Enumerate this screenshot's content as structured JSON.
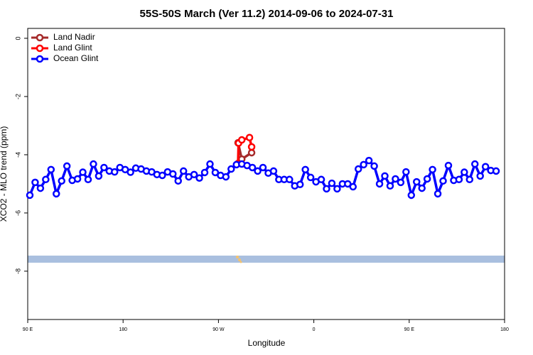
{
  "chart_data": {
    "type": "line",
    "title": "55S-50S March (Ver 11.2)   2014-09-06 to 2024-07-31",
    "xlabel": "Longitude",
    "ylabel": "XCO2 - MLO trend (ppm)",
    "xlim": [
      90,
      540
    ],
    "ylim": [
      -9.66,
      0.34
    ],
    "xticks": [
      {
        "value": 90,
        "label": "90 E"
      },
      180,
      {
        "value": 270,
        "label": "90 W"
      },
      {
        "value": 360,
        "label": "0"
      },
      {
        "value": 450,
        "label": "90 E"
      },
      {
        "value": 540,
        "label": "180"
      }
    ],
    "yticks": [
      0,
      -2,
      -4,
      -6,
      -8
    ],
    "legend": "top-left",
    "series": [
      {
        "name": "Land Nadir",
        "color": "#a52a2a",
        "x": [
          288.5,
          292,
          301.3
        ],
        "values": [
          -3.59,
          -4.15,
          -3.93
        ]
      },
      {
        "name": "Land Glint",
        "color": "#ff0000",
        "x": [
          288.5,
          289,
          292,
          299.3,
          301.3
        ],
        "values": [
          -4.3,
          -3.6,
          -3.49,
          -3.41,
          -3.73
        ]
      },
      {
        "name": "Ocean Glint",
        "color": "#0000ff",
        "x": [
          92,
          97,
          102,
          107,
          112,
          117,
          122,
          127,
          132,
          137,
          142,
          147,
          152,
          157,
          162,
          167,
          172,
          177,
          182,
          187,
          192,
          197,
          202,
          207,
          212,
          217,
          222,
          227,
          232,
          237,
          242,
          247,
          252,
          257,
          262,
          267,
          272,
          277,
          282,
          287,
          292,
          297,
          302,
          307,
          312,
          317,
          322,
          327,
          332,
          337,
          342,
          347,
          352,
          357,
          362,
          367,
          372,
          377,
          382,
          387,
          392,
          397,
          402,
          407,
          412,
          417,
          422,
          427,
          432,
          437,
          442,
          447,
          452,
          457,
          462,
          467,
          472,
          477,
          482,
          487,
          492,
          497,
          502,
          507,
          512,
          517,
          522,
          527,
          532
        ],
        "values": [
          -5.39,
          -4.95,
          -5.15,
          -4.85,
          -4.51,
          -5.34,
          -4.9,
          -4.39,
          -4.88,
          -4.83,
          -4.6,
          -4.85,
          -4.32,
          -4.73,
          -4.44,
          -4.56,
          -4.59,
          -4.44,
          -4.51,
          -4.6,
          -4.46,
          -4.49,
          -4.56,
          -4.59,
          -4.68,
          -4.71,
          -4.59,
          -4.66,
          -4.9,
          -4.56,
          -4.76,
          -4.68,
          -4.8,
          -4.61,
          -4.32,
          -4.61,
          -4.71,
          -4.76,
          -4.49,
          -4.34,
          -4.32,
          -4.37,
          -4.44,
          -4.56,
          -4.44,
          -4.63,
          -4.56,
          -4.85,
          -4.85,
          -4.85,
          -5.07,
          -5.02,
          -4.51,
          -4.78,
          -4.93,
          -4.85,
          -5.17,
          -4.98,
          -5.17,
          -5.0,
          -5.0,
          -5.1,
          -4.49,
          -4.34,
          -4.2,
          -4.39,
          -5.0,
          -4.73,
          -5.07,
          -4.83,
          -4.95,
          -4.59,
          -5.39,
          -4.93,
          -5.15,
          -4.83,
          -4.51,
          -5.34,
          -4.9,
          -4.37,
          -4.88,
          -4.85,
          -4.6,
          -4.85,
          -4.32,
          -4.73,
          -4.41,
          -4.54,
          -4.56
        ]
      }
    ]
  }
}
